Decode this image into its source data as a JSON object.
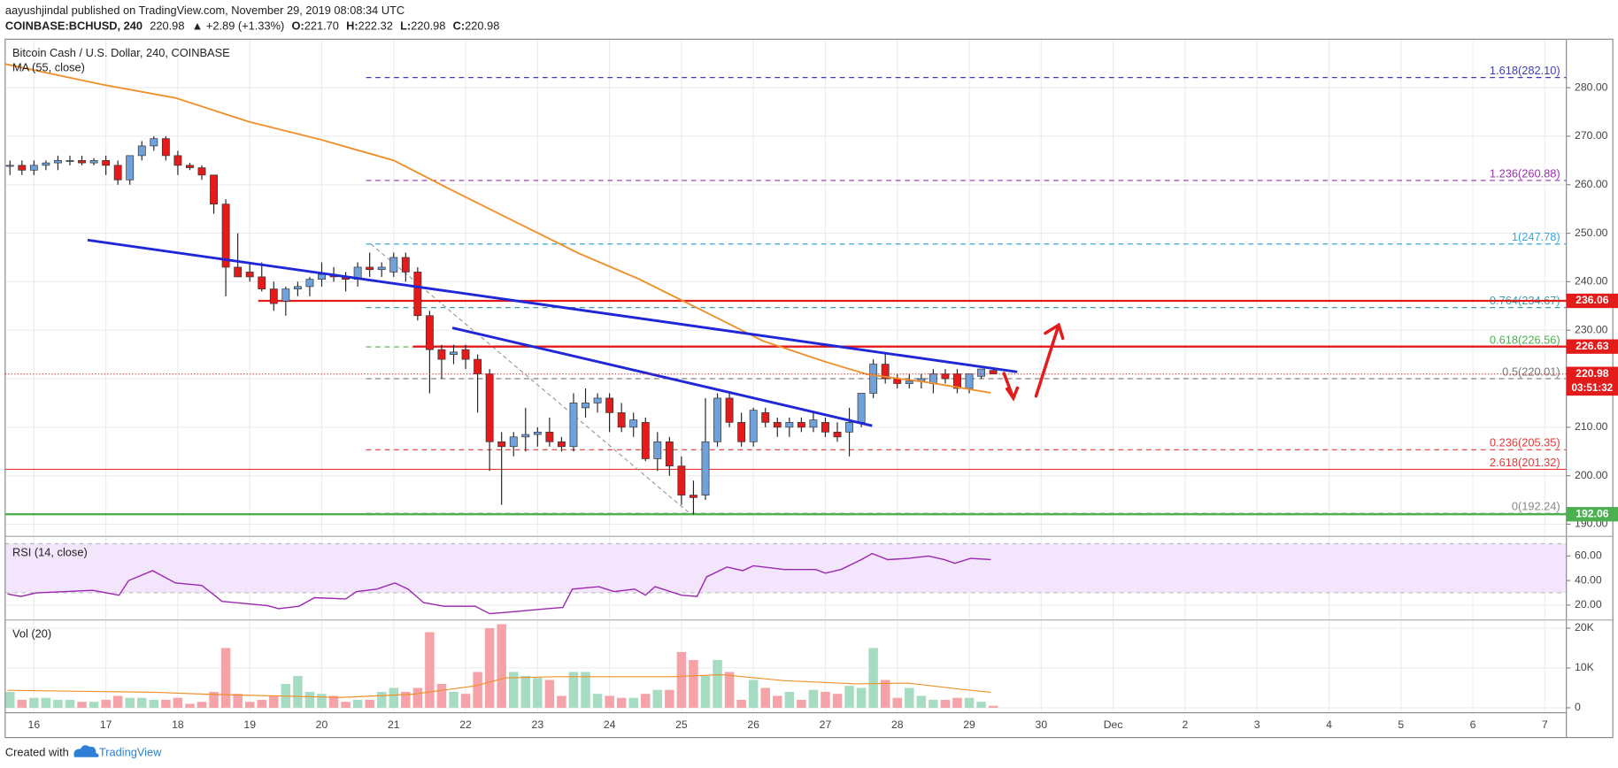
{
  "header": {
    "line1": "aayushjindal published on TradingView.com, November 29, 2019 08:08:34 UTC",
    "symbol": "COINBASE:BCHUSD, 240",
    "price": "220.98",
    "change": "▲ +2.89 (+1.33%)",
    "ohlc": [
      {
        "key": "O:",
        "value": "221.70"
      },
      {
        "key": "H:",
        "value": "222.32"
      },
      {
        "key": "L:",
        "value": "220.98"
      },
      {
        "key": "C:",
        "value": "220.98"
      }
    ]
  },
  "footer": {
    "text": "Created with",
    "brand": "TradingView"
  },
  "chart_data": [
    {
      "type": "candlestick",
      "title": "Bitcoin Cash / U.S. Dollar, 240, COINBASE",
      "x": [
        -2,
        -1,
        0,
        1,
        2,
        3,
        4,
        5,
        6,
        7,
        8,
        9,
        10,
        11,
        12,
        13,
        14,
        15,
        16,
        17,
        18,
        19,
        20,
        21,
        22,
        23,
        24,
        25,
        26,
        27,
        28,
        29,
        30,
        31,
        32,
        33,
        34,
        35,
        36,
        37,
        38,
        39,
        40,
        41,
        42,
        43,
        44,
        45,
        46,
        47,
        48,
        49,
        50,
        51,
        52,
        53,
        54,
        55,
        56,
        57,
        58,
        59,
        60,
        61,
        62,
        63,
        64,
        65,
        66,
        67,
        68,
        69,
        70,
        71,
        72,
        73,
        74,
        75,
        76,
        77,
        78,
        79,
        80
      ],
      "open": [
        264,
        264,
        263,
        264,
        264.5,
        265,
        265,
        264.5,
        265,
        264,
        261,
        266,
        268,
        269.5,
        266,
        264,
        263.5,
        262,
        256,
        243,
        242,
        241,
        238.5,
        236,
        238.5,
        239,
        240.5,
        241.5,
        241,
        240.5,
        243,
        242.5,
        242,
        245,
        242,
        233,
        226,
        225,
        226,
        224,
        221,
        207,
        206,
        208,
        208.5,
        209,
        207,
        206,
        214,
        215,
        216,
        213,
        210,
        211,
        203.5,
        207,
        202,
        196,
        196,
        207,
        216,
        211,
        207,
        213,
        211,
        210,
        211,
        210,
        211,
        209,
        209,
        211,
        217,
        223,
        220,
        219,
        219.5,
        219,
        221,
        221,
        218,
        220.5,
        221.7
      ],
      "high": [
        265,
        265,
        265,
        265,
        266,
        266,
        266,
        265.5,
        266,
        265,
        266,
        269,
        270,
        270,
        267,
        264.5,
        264,
        262,
        257,
        250,
        244,
        244,
        240,
        239,
        240,
        241,
        244,
        243,
        242,
        244,
        246,
        244,
        246,
        246,
        243,
        234,
        227,
        227,
        227,
        225,
        222,
        209,
        209,
        214,
        210,
        212,
        208,
        217,
        218,
        217,
        217,
        215,
        213,
        212,
        209,
        208,
        204,
        199,
        216,
        217,
        217,
        213,
        214,
        214,
        212,
        212,
        212,
        213,
        212,
        211,
        214,
        217,
        224,
        225,
        221,
        221,
        221,
        222,
        222,
        222,
        221,
        222,
        222.32
      ],
      "low": [
        262,
        262,
        262,
        263,
        263,
        264,
        264,
        264,
        262,
        260,
        260,
        265,
        267,
        265,
        262,
        263,
        261,
        254,
        237,
        241,
        240,
        238,
        234,
        233,
        237,
        237,
        239,
        240,
        238,
        239,
        241,
        241,
        241,
        240,
        232,
        217,
        220,
        223,
        222,
        213,
        201,
        194,
        204,
        205,
        206,
        206,
        205,
        205,
        212,
        213,
        209,
        209,
        208,
        203,
        201,
        200,
        194,
        192,
        195,
        206,
        210,
        206,
        206,
        210,
        208,
        208,
        209,
        209,
        208,
        207,
        204,
        210,
        216,
        219,
        218,
        218,
        218,
        217,
        219,
        217,
        217,
        220,
        220.98
      ],
      "close": [
        264,
        263,
        264,
        264.5,
        265,
        265,
        264.5,
        265,
        264,
        261,
        266,
        268,
        269.5,
        266,
        264,
        263.5,
        262,
        256,
        243,
        241,
        241,
        238.5,
        235.5,
        238.5,
        239,
        240.5,
        241.5,
        241,
        240.5,
        243,
        242.5,
        243,
        245,
        242,
        233,
        226,
        224,
        225.5,
        224,
        221,
        207,
        206,
        208,
        208.5,
        209,
        207,
        206,
        215,
        215,
        216,
        213,
        210,
        211.5,
        203.5,
        207,
        202,
        196,
        195.5,
        207,
        216,
        211,
        207,
        213.5,
        211,
        210,
        211,
        210,
        211.5,
        209,
        208,
        211,
        217,
        223,
        220,
        219,
        219.5,
        220,
        221,
        220,
        218,
        221,
        222,
        220.98
      ],
      "up_color": "#6fa2dc",
      "down_color": "#e31b1b",
      "series": [
        {
          "name": "MA (55, close)",
          "color": "#f0902c",
          "x": [
            -2.4,
            5.8,
            11.8,
            17.9,
            23.9,
            30,
            35,
            40.2,
            45.4,
            50.5,
            55.7,
            60.8,
            66,
            69.5,
            74.7,
            79.8
          ],
          "values": [
            284.9,
            280.6,
            277.9,
            273,
            269.3,
            265,
            258.7,
            252.3,
            245.9,
            240.5,
            234.1,
            227.8,
            223.5,
            220.9,
            219.2,
            217.1
          ]
        }
      ],
      "levels_start": 27.7,
      "levels": [
        {
          "label": "1.618(282.10)",
          "value": 282.1,
          "color": "#3d3db8",
          "dashed": true
        },
        {
          "label": "1.236(260.88)",
          "value": 260.88,
          "color": "#9b30b0",
          "dashed": true
        },
        {
          "label": "1(247.78)",
          "value": 247.78,
          "color": "#3aa6d8",
          "dashed": true
        },
        {
          "label": "0.764(234.67)",
          "value": 234.67,
          "color": "#3d9cb2",
          "dashed": true
        },
        {
          "label": "0.618(226.56)",
          "value": 226.56,
          "color": "#4caf50",
          "dashed": true
        },
        {
          "label": "0.5(220.01)",
          "value": 220.01,
          "color": "#777777",
          "dashed": true
        },
        {
          "label": "0.236(205.35)",
          "value": 205.35,
          "color": "#e53935",
          "dashed": true
        },
        {
          "label": "2.618(201.32)",
          "value": 201.32,
          "color": "#e53935",
          "dashed": false
        },
        {
          "label": "0(192.24)",
          "value": 192.24,
          "color": "#888888",
          "dashed": true
        }
      ],
      "hlines": [
        {
          "value": 236.06,
          "label": "236.06",
          "color": "#e31b1b",
          "start": 18.7
        },
        {
          "value": 226.63,
          "label": "226.63",
          "color": "#e31b1b",
          "start": 31.6
        },
        {
          "value": 192.06,
          "label": "192.06",
          "color": "#4caf50",
          "start": -2.4
        }
      ],
      "trendlines": [
        {
          "x": [
            4.48,
            82.0
          ],
          "values": [
            248.6,
            221.4
          ],
          "color": "#1f27d6"
        },
        {
          "x": [
            34.9,
            69.9
          ],
          "values": [
            230.5,
            210.3
          ],
          "color": "#1f27d6"
        }
      ],
      "fib_connector": {
        "x": [
          28.1,
          54.7
        ],
        "values": [
          247.78,
          192.24
        ],
        "color": "#999999"
      },
      "last_price": {
        "value": 220.98,
        "label": "220.98",
        "countdown": "03:51:32",
        "color": "#e31b1b"
      },
      "xlim": [
        -2.4,
        127.8
      ],
      "ylim": [
        187.7,
        290
      ],
      "yticks": [
        {
          "value": 190,
          "label": "190.00"
        },
        {
          "value": 200,
          "label": "200.00"
        },
        {
          "value": 210,
          "label": "210.00"
        },
        {
          "value": 220,
          "label": "220.00"
        },
        {
          "value": 230,
          "label": "230.00"
        },
        {
          "value": 240,
          "label": "240.00"
        },
        {
          "value": 250,
          "label": "250.00"
        },
        {
          "value": 260,
          "label": "260.00"
        },
        {
          "value": 270,
          "label": "270.00"
        },
        {
          "value": 280,
          "label": "280.00"
        }
      ],
      "grid": true
    },
    {
      "type": "line",
      "series": [
        {
          "name": "RSI (14, close)",
          "color": "#9c27b0",
          "x": [
            -2.2,
            -1.1,
            0.2,
            4.9,
            7.1,
            7.9,
            9.9,
            11.8,
            14,
            15.7,
            19.5,
            20.4,
            22.1,
            23.4,
            26,
            26.9,
            28.6,
            30.1,
            31.2,
            32.5,
            34.2,
            36.8,
            38,
            39.3,
            42.8,
            44.1,
            44.9,
            47.1,
            48.4,
            50.1,
            51,
            51.8,
            54,
            55.3,
            56.1,
            57.8,
            59.1,
            60,
            62.6,
            65.2,
            66,
            67.3,
            69,
            69.9,
            71.2,
            72.9,
            74.6,
            75.9,
            76.8,
            78.1,
            79.8
          ],
          "values": [
            29,
            27,
            30,
            32,
            28,
            40,
            48,
            38,
            36,
            23,
            19.5,
            17,
            19,
            26,
            25,
            31,
            33,
            38,
            33,
            22,
            19,
            19,
            13,
            14,
            17,
            18,
            33,
            35,
            31,
            33,
            28,
            35,
            28,
            27,
            43,
            51,
            48,
            52,
            49,
            49,
            46,
            49,
            57,
            62,
            57,
            58,
            60,
            57,
            54,
            58,
            57
          ]
        }
      ],
      "band": [
        30,
        70
      ],
      "band_color": "#f3e5fb",
      "xlim": [
        -2.4,
        127.8
      ],
      "ylim": [
        8.7,
        75.1
      ],
      "yticks": [
        {
          "value": 20,
          "label": "20.00"
        },
        {
          "value": 40,
          "label": "40.00"
        },
        {
          "value": 60,
          "label": "60.00"
        }
      ],
      "grid": true
    },
    {
      "type": "bar",
      "series": [
        {
          "name": "Vol (20)",
          "color": "#f0902c",
          "x": [
            -2.2,
            10.1,
            14.4,
            25.6,
            31.6,
            36.8,
            39.3,
            43.6,
            53.1,
            57.4,
            62.6,
            68.6,
            72.9,
            77.2,
            79.8
          ],
          "values": [
            4400,
            3900,
            3400,
            2600,
            3400,
            5500,
            7500,
            7800,
            7800,
            8300,
            6800,
            6000,
            6200,
            4700,
            3900
          ]
        }
      ],
      "x": [
        -2,
        -1,
        0,
        1,
        2,
        3,
        4,
        5,
        6,
        7,
        8,
        9,
        10,
        11,
        12,
        13,
        14,
        15,
        16,
        17,
        18,
        19,
        20,
        21,
        22,
        23,
        24,
        25,
        26,
        27,
        28,
        29,
        30,
        31,
        32,
        33,
        34,
        35,
        36,
        37,
        38,
        39,
        40,
        41,
        42,
        43,
        44,
        45,
        46,
        47,
        48,
        49,
        50,
        51,
        52,
        53,
        54,
        55,
        56,
        57,
        58,
        59,
        60,
        61,
        62,
        63,
        64,
        65,
        66,
        67,
        68,
        69,
        70,
        71,
        72,
        73,
        74,
        75,
        76,
        77,
        78,
        79,
        80
      ],
      "values": [
        4000,
        2000,
        2500,
        2500,
        2000,
        2000,
        1500,
        1500,
        2000,
        3000,
        2500,
        2500,
        2000,
        2000,
        2500,
        1000,
        1500,
        4000,
        15000,
        3500,
        1500,
        2000,
        3000,
        6000,
        8000,
        4000,
        3500,
        3000,
        1500,
        2000,
        2000,
        4000,
        5000,
        4000,
        5000,
        19000,
        6000,
        4000,
        3500,
        9000,
        20000,
        21000,
        9000,
        8000,
        7500,
        7000,
        3000,
        9000,
        9000,
        3500,
        3000,
        2500,
        2500,
        3500,
        4500,
        4500,
        14000,
        12000,
        8000,
        12000,
        9000,
        2000,
        7000,
        5000,
        3000,
        4000,
        2000,
        4500,
        4000,
        3500,
        5500,
        5000,
        15000,
        7000,
        2500,
        5000,
        3000,
        2000,
        2000,
        2500,
        2500,
        1500,
        500
      ],
      "up_color": "#a6dcc2",
      "down_color": "#f5a3a8",
      "xlim": [
        -2.4,
        127.8
      ],
      "ylim": [
        -1000,
        21800
      ],
      "yticks": [
        {
          "value": 0,
          "label": "0"
        },
        {
          "value": 10000,
          "label": "10K"
        },
        {
          "value": 20000,
          "label": "20K"
        }
      ],
      "xticks": [
        {
          "value": 0,
          "label": "16"
        },
        {
          "value": 6,
          "label": "17"
        },
        {
          "value": 12,
          "label": "18"
        },
        {
          "value": 18,
          "label": "19"
        },
        {
          "value": 24,
          "label": "20"
        },
        {
          "value": 30,
          "label": "21"
        },
        {
          "value": 36,
          "label": "22"
        },
        {
          "value": 42,
          "label": "23"
        },
        {
          "value": 48,
          "label": "24"
        },
        {
          "value": 54,
          "label": "25"
        },
        {
          "value": 60,
          "label": "26"
        },
        {
          "value": 66,
          "label": "27"
        },
        {
          "value": 72,
          "label": "28"
        },
        {
          "value": 78,
          "label": "29"
        },
        {
          "value": 84,
          "label": "30"
        },
        {
          "value": 90,
          "label": "Dec"
        },
        {
          "value": 96,
          "label": "2"
        },
        {
          "value": 102,
          "label": "3"
        },
        {
          "value": 108,
          "label": "4"
        },
        {
          "value": 114,
          "label": "5"
        },
        {
          "value": 120,
          "label": "6"
        },
        {
          "value": 126,
          "label": "7"
        }
      ],
      "grid": true
    }
  ]
}
